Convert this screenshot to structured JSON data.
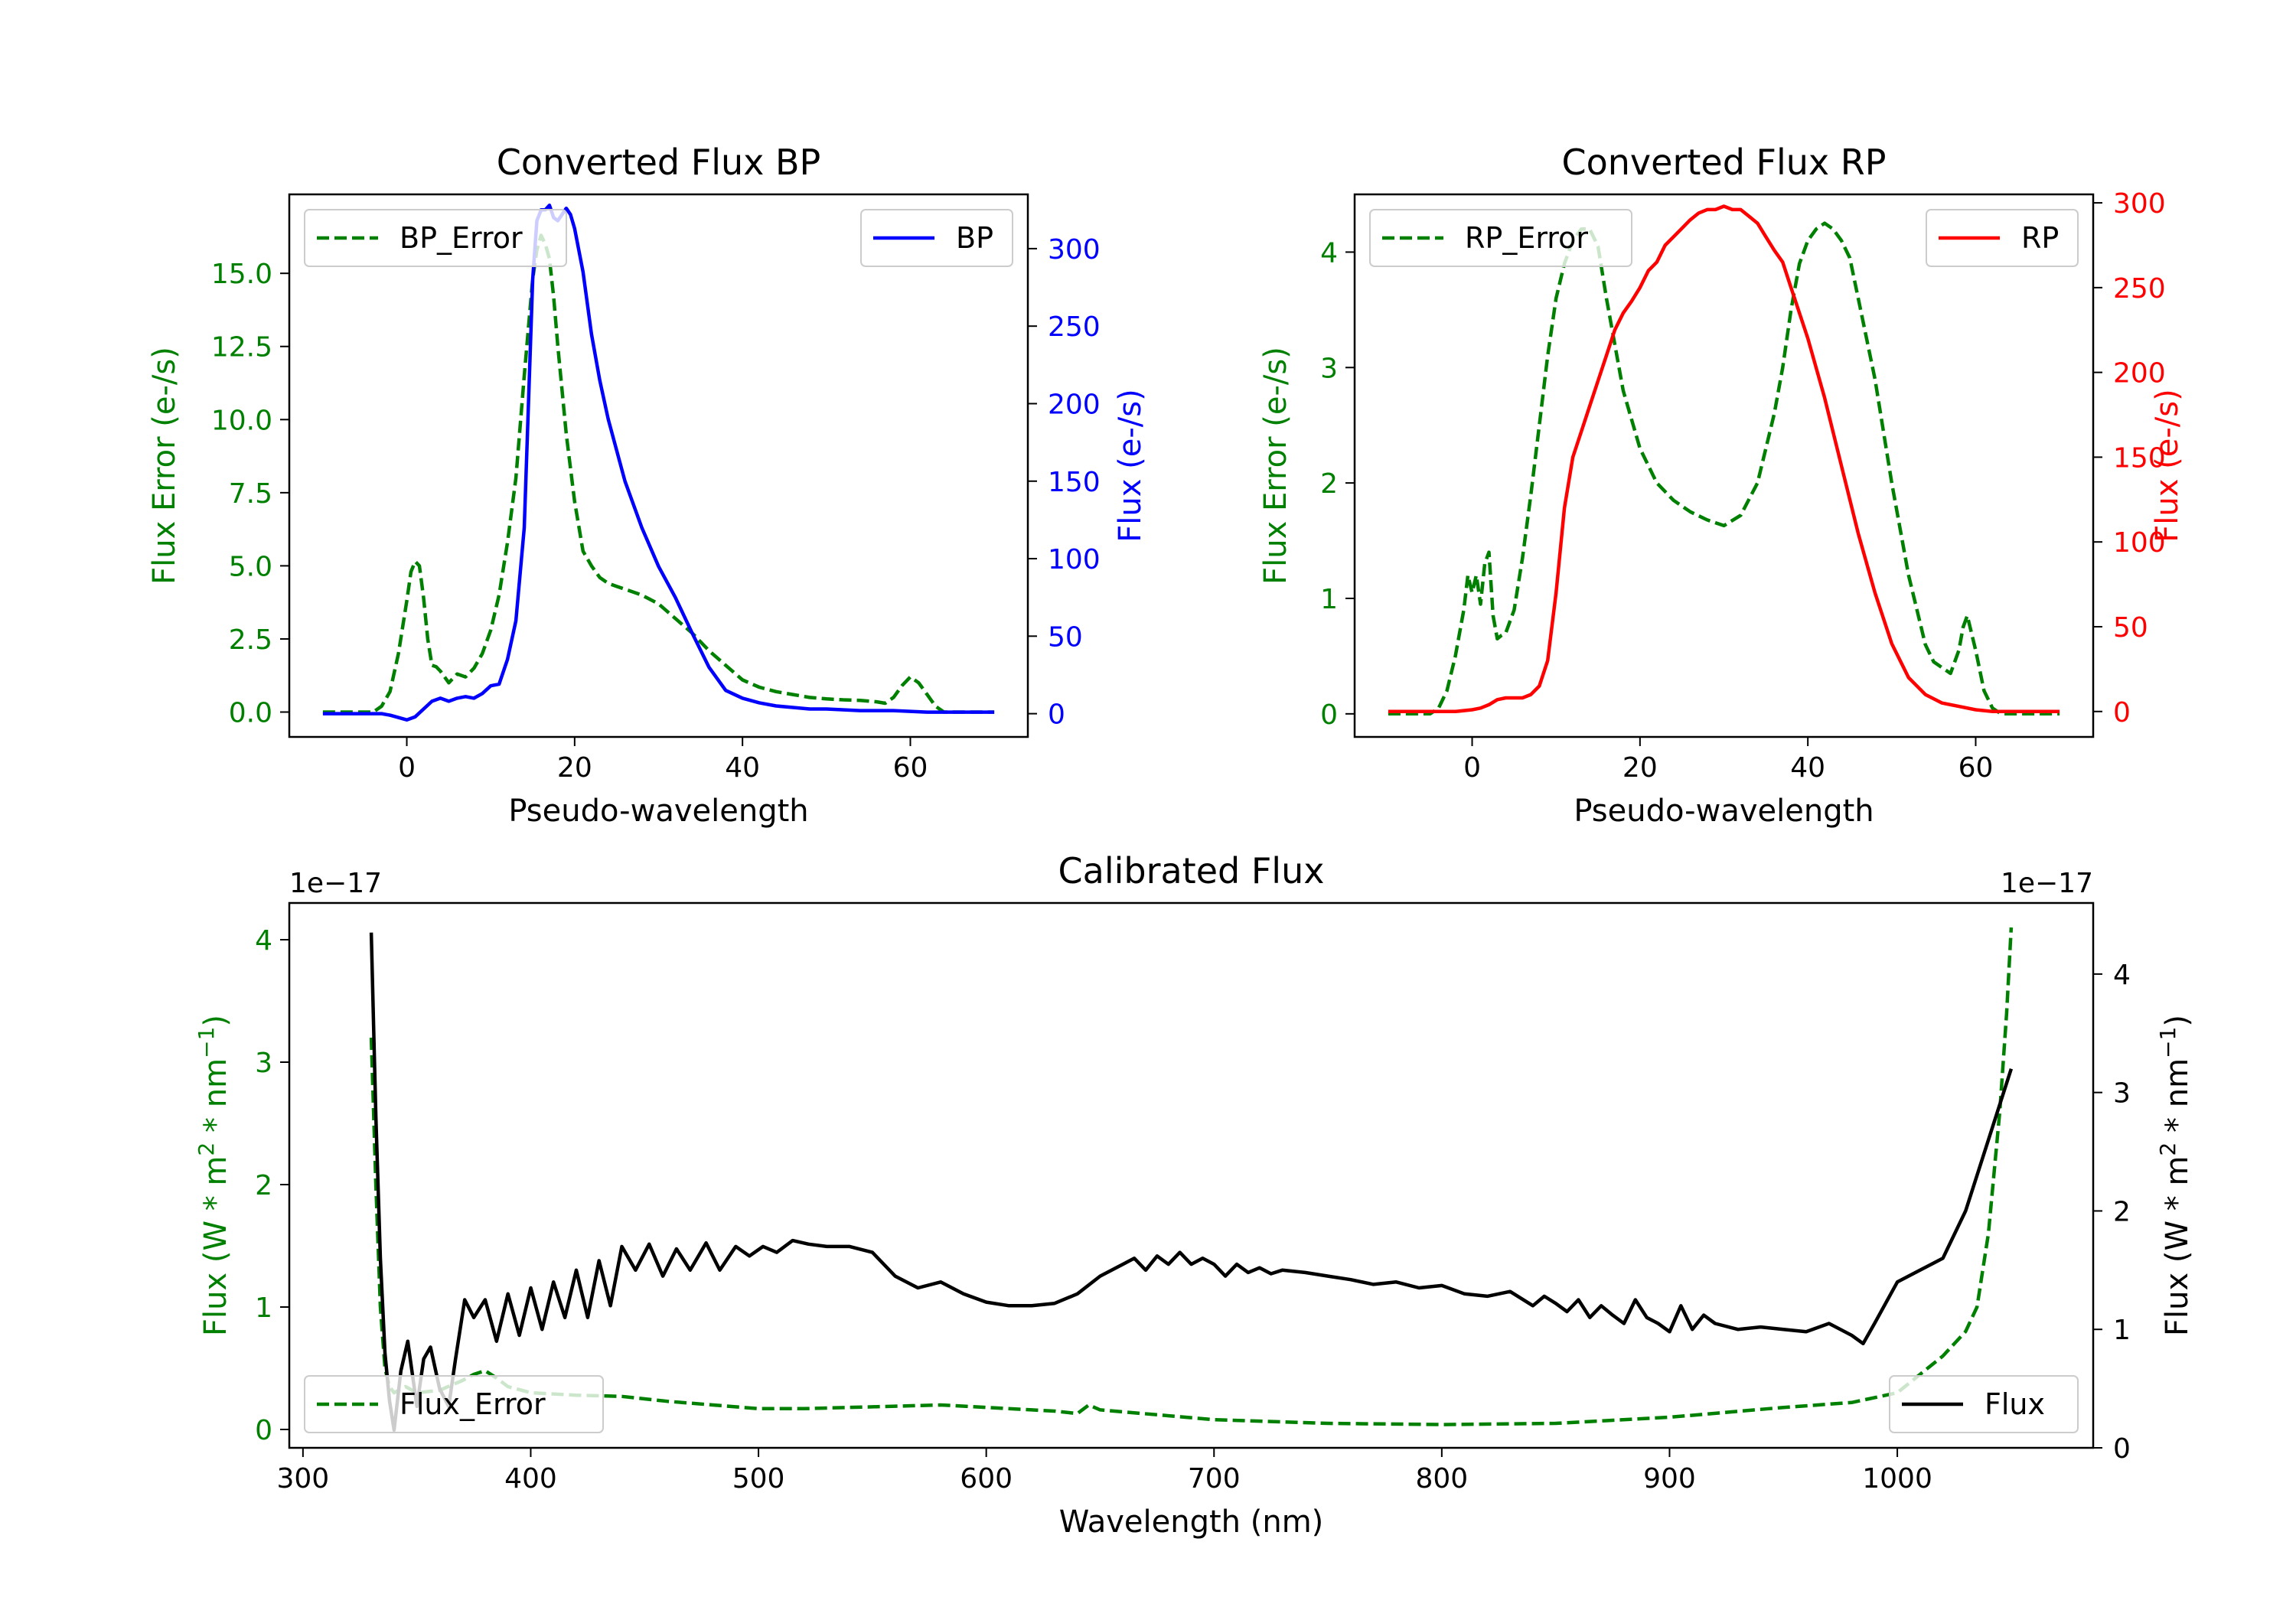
{
  "colors": {
    "bp": "#0000ff",
    "rp": "#ff0000",
    "error": "#008000",
    "flux": "#000000",
    "axis": "#000000"
  },
  "chart_data": [
    {
      "id": "bp",
      "type": "line",
      "title": "Converted Flux BP",
      "xlabel": "Pseudo-wavelength",
      "ylabel_left": "Flux Error (e-/s)",
      "ylabel_right": "Flux (e-/s)",
      "xlim": [
        -14,
        74
      ],
      "ylim_left": [
        -0.85,
        17.7
      ],
      "ylim_right": [
        -15,
        335
      ],
      "xticks": [
        0,
        20,
        40,
        60
      ],
      "yticks_left": [
        0.0,
        2.5,
        5.0,
        7.5,
        10.0,
        12.5,
        15.0
      ],
      "ytick_labels_left": [
        "0.0",
        "2.5",
        "5.0",
        "7.5",
        "10.0",
        "12.5",
        "15.0"
      ],
      "yticks_right": [
        0,
        50,
        100,
        150,
        200,
        250,
        300
      ],
      "ytick_labels_right": [
        "0",
        "50",
        "100",
        "150",
        "200",
        "250",
        "300"
      ],
      "legend_left": "top-left",
      "legend_right": "top-right",
      "series": [
        {
          "name": "BP_Error",
          "axis": "left",
          "style": "dashed",
          "color_key": "error",
          "x": [
            -10,
            -6,
            -4,
            -3,
            -2,
            -1,
            0,
            0.5,
            1,
            1.5,
            2,
            2.5,
            3,
            3.5,
            4,
            4.5,
            5,
            6,
            7,
            8,
            9,
            10,
            11,
            12,
            13,
            14,
            15,
            15.5,
            16,
            16.5,
            17,
            17.5,
            18,
            19,
            20,
            21,
            22,
            23,
            24,
            25,
            26,
            28,
            30,
            32,
            34,
            36,
            38,
            40,
            42,
            44,
            46,
            48,
            50,
            52,
            54,
            56,
            57,
            58,
            59,
            60,
            61,
            62,
            63,
            64,
            66,
            68,
            70
          ],
          "y": [
            0,
            0,
            0,
            0.2,
            0.7,
            2.0,
            3.8,
            4.8,
            5.15,
            5.0,
            3.9,
            2.5,
            1.6,
            1.55,
            1.4,
            1.2,
            1.0,
            1.3,
            1.2,
            1.5,
            2.0,
            2.8,
            4.0,
            5.8,
            8.0,
            11.5,
            14.8,
            15.8,
            16.3,
            16.0,
            15.5,
            14.2,
            12.5,
            9.5,
            7.2,
            5.5,
            5.0,
            4.6,
            4.4,
            4.3,
            4.2,
            4.0,
            3.7,
            3.2,
            2.7,
            2.1,
            1.6,
            1.1,
            0.85,
            0.7,
            0.6,
            0.5,
            0.45,
            0.42,
            0.4,
            0.35,
            0.3,
            0.5,
            0.9,
            1.2,
            1.0,
            0.6,
            0.2,
            0,
            0,
            0,
            0
          ]
        },
        {
          "name": "BP",
          "axis": "right",
          "style": "solid",
          "color_key": "bp",
          "x": [
            -10,
            -6,
            -3,
            -2,
            0,
            1,
            2,
            3,
            4,
            5,
            6,
            7,
            8,
            9,
            10,
            11,
            12,
            13,
            14,
            15,
            15.5,
            16,
            16.5,
            17,
            17.5,
            18,
            18.5,
            19,
            19.5,
            20,
            21,
            22,
            23,
            24,
            26,
            28,
            30,
            32,
            34,
            36,
            38,
            40,
            42,
            44,
            46,
            48,
            50,
            54,
            58,
            62,
            66,
            70
          ],
          "y": [
            0,
            0,
            0,
            -1,
            -4,
            -2,
            3,
            8,
            10,
            8,
            10,
            11,
            10,
            13,
            18,
            19,
            35,
            60,
            120,
            280,
            318,
            325,
            325,
            328,
            320,
            318,
            322,
            326,
            322,
            313,
            285,
            245,
            215,
            190,
            150,
            120,
            95,
            75,
            52,
            30,
            15,
            10,
            7,
            5,
            4,
            3,
            3,
            2,
            2,
            1,
            1,
            1
          ]
        }
      ]
    },
    {
      "id": "rp",
      "type": "line",
      "title": "Converted Flux RP",
      "xlabel": "Pseudo-wavelength",
      "ylabel_left": "Flux Error (e-/s)",
      "ylabel_right": "Flux (e-/s)",
      "xlim": [
        -14,
        74
      ],
      "ylim_left": [
        -0.2,
        4.5
      ],
      "ylim_right": [
        -15,
        305
      ],
      "xticks": [
        0,
        20,
        40,
        60
      ],
      "yticks_left": [
        0,
        1,
        2,
        3,
        4
      ],
      "ytick_labels_left": [
        "0",
        "1",
        "2",
        "3",
        "4"
      ],
      "yticks_right": [
        0,
        50,
        100,
        150,
        200,
        250,
        300
      ],
      "ytick_labels_right": [
        "0",
        "50",
        "100",
        "150",
        "200",
        "250",
        "300"
      ],
      "legend_left": "top-left",
      "legend_right": "top-right",
      "series": [
        {
          "name": "RP_Error",
          "axis": "left",
          "style": "dashed",
          "color_key": "error",
          "x": [
            -10,
            -5,
            -4,
            -3,
            -2,
            -1,
            -0.5,
            0,
            0.5,
            1,
            1.5,
            2,
            2.5,
            3,
            3.5,
            4,
            5,
            6,
            7,
            8,
            9,
            10,
            11,
            12,
            13,
            14,
            15,
            16,
            18,
            20,
            22,
            24,
            26,
            28,
            30,
            32,
            34,
            36,
            37,
            38,
            39,
            40,
            41,
            42,
            43,
            44,
            45,
            46,
            48,
            50,
            52,
            54,
            55,
            56,
            57,
            58,
            58.5,
            59,
            60,
            61,
            62,
            63,
            64,
            66,
            68,
            70
          ],
          "y": [
            0,
            0,
            0.05,
            0.2,
            0.5,
            0.9,
            1.2,
            1.05,
            1.2,
            0.95,
            1.3,
            1.4,
            0.85,
            0.65,
            0.68,
            0.7,
            0.9,
            1.35,
            1.9,
            2.5,
            3.1,
            3.6,
            3.9,
            4.1,
            4.2,
            4.2,
            4.05,
            3.6,
            2.8,
            2.3,
            2.0,
            1.85,
            1.75,
            1.68,
            1.63,
            1.72,
            2.0,
            2.6,
            3.0,
            3.5,
            3.9,
            4.1,
            4.2,
            4.25,
            4.2,
            4.1,
            3.95,
            3.6,
            2.9,
            2.0,
            1.2,
            0.6,
            0.45,
            0.4,
            0.35,
            0.55,
            0.75,
            0.85,
            0.55,
            0.2,
            0.05,
            0,
            0,
            0,
            0,
            0
          ]
        },
        {
          "name": "RP",
          "axis": "right",
          "style": "solid",
          "color_key": "rp",
          "x": [
            -10,
            -4,
            -2,
            0,
            1,
            2,
            3,
            4,
            5,
            6,
            7,
            8,
            9,
            10,
            11,
            12,
            13,
            14,
            15,
            16,
            17,
            18,
            19,
            20,
            21,
            22,
            23,
            24,
            25,
            26,
            27,
            28,
            29,
            30,
            31,
            32,
            33,
            34,
            35,
            36,
            37,
            38,
            40,
            42,
            44,
            46,
            48,
            50,
            52,
            54,
            56,
            58,
            60,
            62,
            64,
            66,
            70
          ],
          "y": [
            0,
            0,
            0,
            1,
            2,
            4,
            7,
            8,
            8,
            8,
            10,
            15,
            30,
            70,
            120,
            150,
            165,
            180,
            195,
            210,
            225,
            235,
            242,
            250,
            260,
            265,
            275,
            280,
            285,
            290,
            294,
            296,
            296,
            298,
            296,
            296,
            292,
            288,
            280,
            272,
            265,
            250,
            220,
            185,
            145,
            105,
            70,
            40,
            20,
            10,
            5,
            3,
            1,
            0,
            0,
            0,
            0
          ]
        }
      ]
    },
    {
      "id": "calibrated",
      "type": "line",
      "title": "Calibrated Flux",
      "xlabel": "Wavelength (nm)",
      "ylabel_left": "Flux (W * m^2 * nm^-1)",
      "ylabel_right": "Flux (W * m^2 * nm^-1)",
      "offset_left": "1e−17",
      "offset_right": "1e−17",
      "xlim": [
        294,
        1086
      ],
      "ylim_left": [
        -0.15,
        4.3
      ],
      "ylim_right": [
        0,
        4.6
      ],
      "xticks": [
        300,
        400,
        500,
        600,
        700,
        800,
        900,
        1000
      ],
      "yticks_left": [
        0,
        1,
        2,
        3,
        4
      ],
      "ytick_labels_left": [
        "0",
        "1",
        "2",
        "3",
        "4"
      ],
      "yticks_right": [
        0,
        1,
        2,
        3,
        4
      ],
      "ytick_labels_right": [
        "0",
        "1",
        "2",
        "3",
        "4"
      ],
      "legend_left": "bottom-left",
      "legend_right": "bottom-right",
      "series": [
        {
          "name": "Flux_Error",
          "axis": "left",
          "style": "dashed",
          "color_key": "error",
          "x": [
            330,
            332,
            334,
            336,
            338,
            340,
            345,
            350,
            360,
            370,
            375,
            380,
            385,
            390,
            400,
            420,
            440,
            460,
            480,
            500,
            520,
            540,
            560,
            580,
            600,
            620,
            630,
            640,
            645,
            650,
            700,
            750,
            800,
            850,
            900,
            950,
            980,
            1000,
            1010,
            1020,
            1030,
            1035,
            1040,
            1045,
            1048,
            1050
          ],
          "y": [
            3.2,
            2.0,
            1.0,
            0.5,
            0.35,
            0.3,
            0.35,
            0.3,
            0.32,
            0.4,
            0.45,
            0.48,
            0.42,
            0.35,
            0.3,
            0.28,
            0.27,
            0.23,
            0.2,
            0.17,
            0.17,
            0.18,
            0.19,
            0.2,
            0.18,
            0.16,
            0.15,
            0.13,
            0.2,
            0.16,
            0.08,
            0.05,
            0.04,
            0.05,
            0.1,
            0.18,
            0.22,
            0.3,
            0.45,
            0.6,
            0.8,
            1.0,
            1.6,
            2.6,
            3.4,
            4.1
          ]
        },
        {
          "name": "Flux",
          "axis": "right",
          "style": "solid",
          "color_key": "flux",
          "x": [
            330,
            332,
            334,
            336,
            338,
            340,
            343,
            346,
            350,
            353,
            356,
            360,
            364,
            367,
            371,
            375,
            380,
            385,
            390,
            395,
            400,
            405,
            410,
            415,
            420,
            425,
            430,
            435,
            440,
            446,
            452,
            458,
            464,
            470,
            477,
            483,
            490,
            496,
            502,
            508,
            515,
            522,
            530,
            540,
            550,
            560,
            570,
            580,
            590,
            600,
            610,
            620,
            630,
            640,
            650,
            660,
            665,
            670,
            675,
            680,
            685,
            690,
            695,
            700,
            705,
            710,
            715,
            720,
            725,
            730,
            740,
            750,
            760,
            770,
            780,
            790,
            800,
            810,
            820,
            830,
            840,
            845,
            850,
            855,
            860,
            865,
            870,
            875,
            880,
            885,
            890,
            895,
            900,
            905,
            910,
            915,
            920,
            930,
            940,
            950,
            960,
            970,
            980,
            985,
            990,
            1000,
            1010,
            1020,
            1030,
            1040,
            1050
          ],
          "y": [
            4.35,
            2.8,
            1.6,
            0.8,
            0.4,
            0.15,
            0.65,
            0.9,
            0.35,
            0.75,
            0.85,
            0.5,
            0.35,
            0.75,
            1.25,
            1.1,
            1.25,
            0.9,
            1.3,
            0.95,
            1.35,
            1.0,
            1.4,
            1.1,
            1.5,
            1.1,
            1.58,
            1.2,
            1.7,
            1.5,
            1.72,
            1.45,
            1.68,
            1.5,
            1.73,
            1.5,
            1.7,
            1.62,
            1.7,
            1.65,
            1.75,
            1.72,
            1.7,
            1.7,
            1.65,
            1.45,
            1.35,
            1.4,
            1.3,
            1.23,
            1.2,
            1.2,
            1.22,
            1.3,
            1.45,
            1.55,
            1.6,
            1.5,
            1.62,
            1.55,
            1.65,
            1.55,
            1.6,
            1.55,
            1.45,
            1.55,
            1.48,
            1.52,
            1.47,
            1.5,
            1.48,
            1.45,
            1.42,
            1.38,
            1.4,
            1.35,
            1.37,
            1.3,
            1.28,
            1.32,
            1.2,
            1.28,
            1.22,
            1.15,
            1.25,
            1.1,
            1.2,
            1.12,
            1.05,
            1.25,
            1.1,
            1.05,
            0.98,
            1.2,
            1.0,
            1.12,
            1.05,
            1.0,
            1.02,
            1.0,
            0.98,
            1.05,
            0.95,
            0.88,
            1.05,
            1.4,
            1.5,
            1.6,
            2.0,
            2.6,
            3.2
          ]
        }
      ]
    }
  ]
}
